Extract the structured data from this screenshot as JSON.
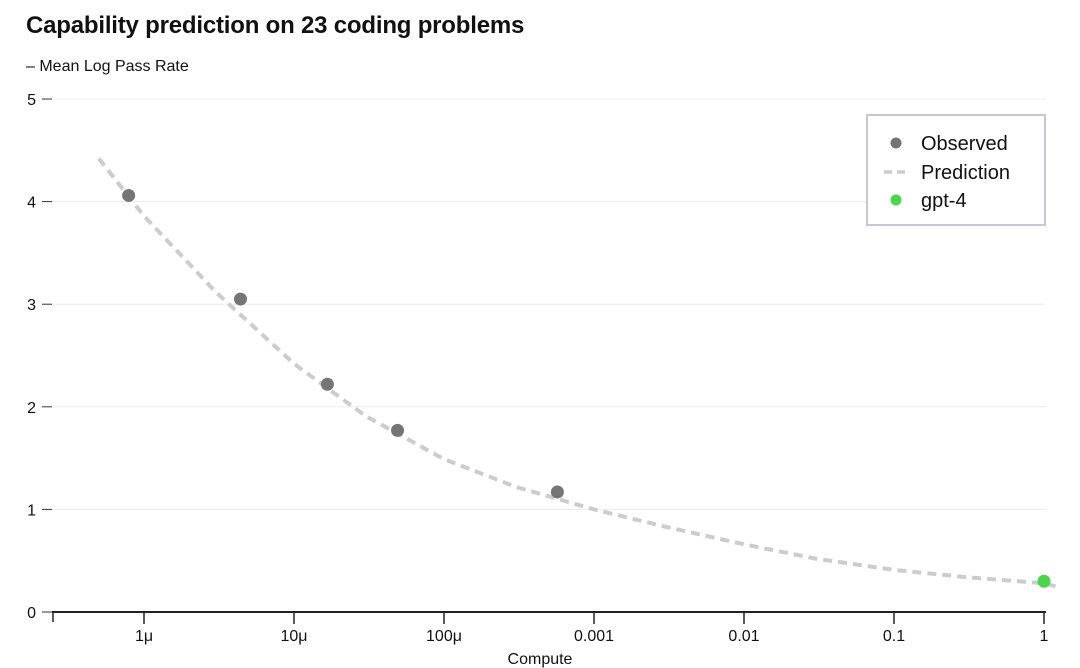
{
  "chart_data": {
    "type": "scatter",
    "title": "Capability prediction on 23 coding problems",
    "ylabel": "– Mean Log Pass Rate",
    "xlabel": "Compute",
    "x_scale": "log",
    "x_ticks": [
      {
        "value": 1e-06,
        "label": "1μ"
      },
      {
        "value": 1e-05,
        "label": "10μ"
      },
      {
        "value": 0.0001,
        "label": "100μ"
      },
      {
        "value": 0.001,
        "label": "0.001"
      },
      {
        "value": 0.01,
        "label": "0.01"
      },
      {
        "value": 0.1,
        "label": "0.1"
      },
      {
        "value": 1,
        "label": "1"
      }
    ],
    "y_ticks": [
      0,
      1,
      2,
      3,
      4,
      5
    ],
    "ylim": [
      0,
      5
    ],
    "grid": true,
    "legend_position": "top-right",
    "legend": [
      "Observed",
      "Prediction",
      "gpt-4"
    ],
    "series": [
      {
        "name": "Observed",
        "kind": "points",
        "color": "#757575",
        "points": [
          {
            "x": 7.9e-07,
            "y": 4.06
          },
          {
            "x": 4.4e-06,
            "y": 3.05
          },
          {
            "x": 1.67e-05,
            "y": 2.22
          },
          {
            "x": 4.9e-05,
            "y": 1.77
          },
          {
            "x": 0.00057,
            "y": 1.17
          }
        ]
      },
      {
        "name": "Prediction",
        "kind": "dashed-line",
        "color": "#cccccc",
        "points": [
          {
            "x": 5e-07,
            "y": 4.42
          },
          {
            "x": 1e-06,
            "y": 3.86
          },
          {
            "x": 3e-06,
            "y": 3.12
          },
          {
            "x": 1e-05,
            "y": 2.42
          },
          {
            "x": 3e-05,
            "y": 1.91
          },
          {
            "x": 0.0001,
            "y": 1.49
          },
          {
            "x": 0.0003,
            "y": 1.22
          },
          {
            "x": 0.001,
            "y": 1.0
          },
          {
            "x": 0.003,
            "y": 0.83
          },
          {
            "x": 0.01,
            "y": 0.66
          },
          {
            "x": 0.03,
            "y": 0.52
          },
          {
            "x": 0.1,
            "y": 0.41
          },
          {
            "x": 0.3,
            "y": 0.34
          },
          {
            "x": 1,
            "y": 0.28
          },
          {
            "x": 1.2,
            "y": 0.25
          }
        ]
      },
      {
        "name": "gpt-4",
        "kind": "points",
        "color": "#4cd44c",
        "points": [
          {
            "x": 1,
            "y": 0.3
          }
        ]
      }
    ]
  }
}
